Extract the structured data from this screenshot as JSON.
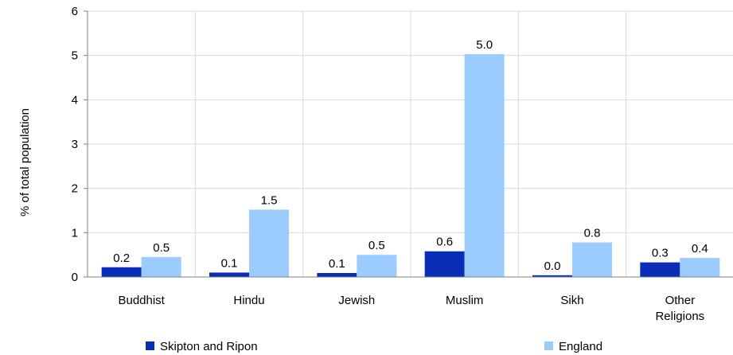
{
  "chart_data": {
    "type": "bar",
    "categories": [
      [
        "Buddhist"
      ],
      [
        "Hindu"
      ],
      [
        "Jewish"
      ],
      [
        "Muslim"
      ],
      [
        "Sikh"
      ],
      [
        "Other",
        "Religions"
      ]
    ],
    "series": [
      {
        "name": "Skipton and Ripon",
        "color": "#0a2db5",
        "values": [
          0.22,
          0.1,
          0.09,
          0.58,
          0.04,
          0.33
        ],
        "labels": [
          "0.2",
          "0.1",
          "0.1",
          "0.6",
          "0.0",
          "0.3"
        ]
      },
      {
        "name": "England",
        "color": "#9ccbff",
        "values": [
          0.45,
          1.52,
          0.5,
          5.03,
          0.78,
          0.43
        ],
        "labels": [
          "0.5",
          "1.5",
          "0.5",
          "5.0",
          "0.8",
          "0.4"
        ]
      }
    ],
    "ylabel": "% of total population",
    "xlabel": "",
    "ylim": [
      0,
      6
    ],
    "yticks": [
      "0",
      "1",
      "2",
      "3",
      "4",
      "5",
      "6"
    ],
    "grid": true,
    "legend_position": "bottom"
  },
  "colors": {
    "grid": "#d9d9d9",
    "axis": "#7f7f7f"
  }
}
